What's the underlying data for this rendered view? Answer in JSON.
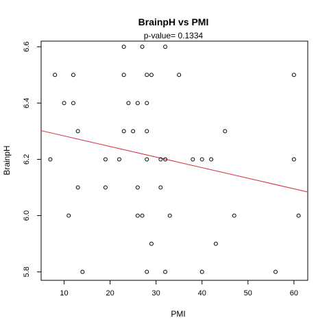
{
  "chart_data": {
    "type": "scatter",
    "title": "BrainpH  vs  PMI",
    "subtitle": "p-value= 0.1334",
    "xlabel": "PMI",
    "ylabel": "BrainpH",
    "xlim": [
      5,
      63
    ],
    "ylim": [
      5.77,
      6.62
    ],
    "xticks": [
      10,
      20,
      30,
      40,
      50,
      60
    ],
    "yticks": [
      5.8,
      6.0,
      6.2,
      6.4,
      6.6
    ],
    "yticklabels": [
      "5.8",
      "6.0",
      "6.2",
      "6.4",
      "6.6"
    ],
    "grid": false,
    "points": [
      [
        7,
        6.2
      ],
      [
        8,
        6.5
      ],
      [
        10,
        6.4
      ],
      [
        11,
        6.0
      ],
      [
        12,
        6.5
      ],
      [
        12,
        6.4
      ],
      [
        13,
        6.3
      ],
      [
        13,
        6.1
      ],
      [
        14,
        5.8
      ],
      [
        19,
        6.2
      ],
      [
        19,
        6.1
      ],
      [
        22,
        6.2
      ],
      [
        23,
        6.6
      ],
      [
        23,
        6.5
      ],
      [
        23,
        6.3
      ],
      [
        24,
        6.4
      ],
      [
        25,
        6.3
      ],
      [
        26,
        6.4
      ],
      [
        26,
        6.1
      ],
      [
        26,
        6.0
      ],
      [
        27,
        6.6
      ],
      [
        27,
        6.0
      ],
      [
        28,
        6.5
      ],
      [
        28,
        6.4
      ],
      [
        28,
        6.3
      ],
      [
        28,
        6.2
      ],
      [
        28,
        5.8
      ],
      [
        29,
        6.5
      ],
      [
        29,
        5.9
      ],
      [
        31,
        6.2
      ],
      [
        31,
        6.1
      ],
      [
        32,
        6.6
      ],
      [
        32,
        6.2
      ],
      [
        32,
        5.8
      ],
      [
        33,
        6.0
      ],
      [
        35,
        6.5
      ],
      [
        38,
        6.2
      ],
      [
        40,
        6.2
      ],
      [
        40,
        5.8
      ],
      [
        42,
        6.2
      ],
      [
        43,
        5.9
      ],
      [
        45,
        6.3
      ],
      [
        47,
        6.0
      ],
      [
        56,
        5.8
      ],
      [
        60,
        6.5
      ],
      [
        60,
        6.2
      ],
      [
        61,
        6.0
      ]
    ],
    "regression_line": {
      "x": [
        5,
        63
      ],
      "y": [
        6.302,
        6.084
      ],
      "color": "#d7263d"
    }
  }
}
